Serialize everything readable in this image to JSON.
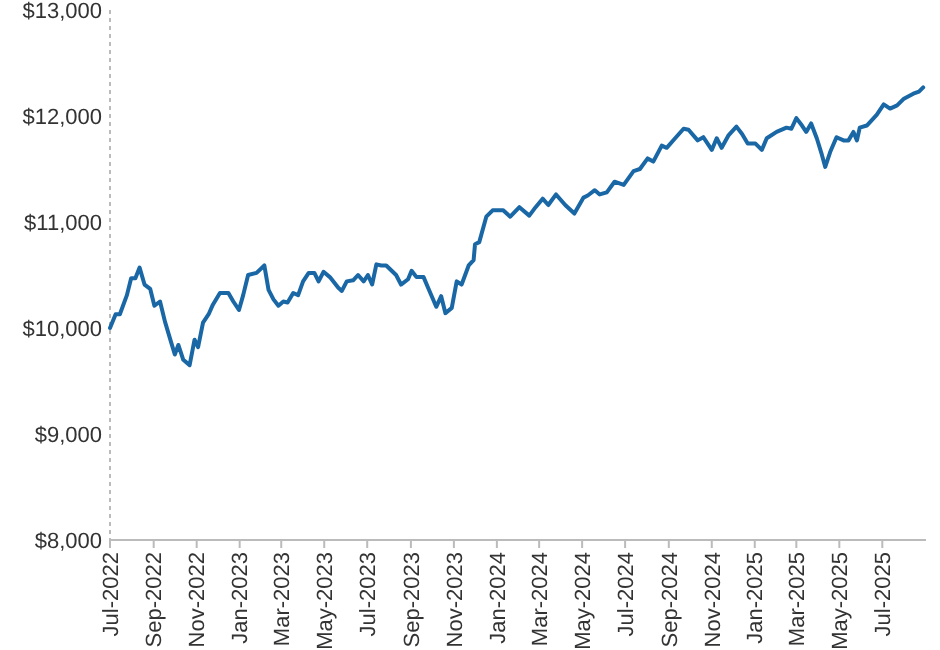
{
  "chart_data": {
    "type": "line",
    "color": "#1a67a6",
    "x": [
      "2022-07-01",
      "2022-07-09",
      "2022-07-15",
      "2022-07-25",
      "2022-07-31",
      "2022-08-06",
      "2022-08-12",
      "2022-08-19",
      "2022-08-27",
      "2022-09-02",
      "2022-09-10",
      "2022-09-17",
      "2022-09-26",
      "2022-10-01",
      "2022-10-06",
      "2022-10-13",
      "2022-10-22",
      "2022-10-29",
      "2022-11-03",
      "2022-11-10",
      "2022-11-18",
      "2022-11-24",
      "2022-12-04",
      "2022-12-16",
      "2022-12-23",
      "2022-12-31",
      "2023-01-06",
      "2023-01-13",
      "2023-01-25",
      "2023-02-05",
      "2023-02-11",
      "2023-02-18",
      "2023-02-25",
      "2023-03-04",
      "2023-03-10",
      "2023-03-18",
      "2023-03-25",
      "2023-04-01",
      "2023-04-09",
      "2023-04-17",
      "2023-04-23",
      "2023-04-30",
      "2023-05-09",
      "2023-05-21",
      "2023-05-26",
      "2023-06-02",
      "2023-06-11",
      "2023-06-18",
      "2023-06-26",
      "2023-07-02",
      "2023-07-08",
      "2023-07-14",
      "2023-07-21",
      "2023-07-28",
      "2023-08-11",
      "2023-08-18",
      "2023-08-28",
      "2023-09-02",
      "2023-09-09",
      "2023-09-19",
      "2023-09-26",
      "2023-10-07",
      "2023-10-14",
      "2023-10-20",
      "2023-10-29",
      "2023-11-05",
      "2023-11-12",
      "2023-11-22",
      "2023-11-29",
      "2023-12-01",
      "2023-12-07",
      "2023-12-17",
      "2023-12-26",
      "2024-01-10",
      "2024-01-20",
      "2024-02-02",
      "2024-02-16",
      "2024-02-25",
      "2024-03-06",
      "2024-03-14",
      "2024-03-25",
      "2024-04-07",
      "2024-04-20",
      "2024-05-03",
      "2024-05-09",
      "2024-05-19",
      "2024-05-26",
      "2024-06-05",
      "2024-06-16",
      "2024-06-29",
      "2024-07-13",
      "2024-07-22",
      "2024-08-02",
      "2024-08-10",
      "2024-08-22",
      "2024-08-29",
      "2024-09-10",
      "2024-09-22",
      "2024-09-29",
      "2024-10-12",
      "2024-10-20",
      "2024-11-01",
      "2024-11-08",
      "2024-11-15",
      "2024-11-25",
      "2024-12-06",
      "2024-12-14",
      "2024-12-22",
      "2025-01-02",
      "2025-01-11",
      "2025-01-18",
      "2025-02-01",
      "2025-02-15",
      "2025-02-22",
      "2025-03-01",
      "2025-03-09",
      "2025-03-15",
      "2025-03-22",
      "2025-03-30",
      "2025-04-06",
      "2025-04-11",
      "2025-04-18",
      "2025-04-27",
      "2025-05-07",
      "2025-05-14",
      "2025-05-21",
      "2025-05-26",
      "2025-05-30",
      "2025-06-09",
      "2025-06-23",
      "2025-07-03",
      "2025-07-12",
      "2025-07-22",
      "2025-07-31",
      "2025-08-14",
      "2025-08-22",
      "2025-08-28"
    ],
    "values": [
      10000,
      10130,
      10130,
      10310,
      10470,
      10470,
      10570,
      10410,
      10370,
      10210,
      10250,
      10060,
      9860,
      9750,
      9840,
      9700,
      9650,
      9890,
      9820,
      10050,
      10130,
      10220,
      10330,
      10330,
      10250,
      10170,
      10310,
      10500,
      10520,
      10590,
      10360,
      10270,
      10210,
      10250,
      10240,
      10330,
      10310,
      10440,
      10520,
      10520,
      10440,
      10530,
      10480,
      10380,
      10350,
      10440,
      10450,
      10500,
      10440,
      10500,
      10410,
      10600,
      10590,
      10590,
      10500,
      10410,
      10460,
      10540,
      10480,
      10480,
      10370,
      10200,
      10300,
      10140,
      10190,
      10440,
      10410,
      10590,
      10640,
      10790,
      10810,
      11050,
      11110,
      11110,
      11050,
      11140,
      11060,
      11140,
      11220,
      11160,
      11260,
      11160,
      11080,
      11230,
      11250,
      11300,
      11260,
      11280,
      11380,
      11350,
      11480,
      11500,
      11600,
      11570,
      11720,
      11700,
      11790,
      11880,
      11870,
      11770,
      11800,
      11680,
      11790,
      11700,
      11820,
      11900,
      11830,
      11740,
      11740,
      11680,
      11790,
      11850,
      11890,
      11880,
      11980,
      11910,
      11850,
      11930,
      11790,
      11640,
      11520,
      11660,
      11800,
      11770,
      11770,
      11850,
      11770,
      11890,
      11910,
      12010,
      12110,
      12070,
      12100,
      12160,
      12210,
      12230,
      12270
    ],
    "xlim": [
      "2022-07-01",
      "2025-09-01"
    ],
    "xticks": [
      {
        "value": "2022-07-01",
        "label": "Jul-2022"
      },
      {
        "value": "2022-09-01",
        "label": "Sep-2022"
      },
      {
        "value": "2022-11-01",
        "label": "Nov-2022"
      },
      {
        "value": "2023-01-01",
        "label": "Jan-2023"
      },
      {
        "value": "2023-03-01",
        "label": "Mar-2023"
      },
      {
        "value": "2023-05-01",
        "label": "May-2023"
      },
      {
        "value": "2023-07-01",
        "label": "Jul-2023"
      },
      {
        "value": "2023-09-01",
        "label": "Sep-2023"
      },
      {
        "value": "2023-11-01",
        "label": "Nov-2023"
      },
      {
        "value": "2024-01-01",
        "label": "Jan-2024"
      },
      {
        "value": "2024-03-01",
        "label": "Mar-2024"
      },
      {
        "value": "2024-05-01",
        "label": "May-2024"
      },
      {
        "value": "2024-07-01",
        "label": "Jul-2024"
      },
      {
        "value": "2024-09-01",
        "label": "Sep-2024"
      },
      {
        "value": "2024-11-01",
        "label": "Nov-2024"
      },
      {
        "value": "2025-01-01",
        "label": "Jan-2025"
      },
      {
        "value": "2025-03-01",
        "label": "Mar-2025"
      },
      {
        "value": "2025-05-01",
        "label": "May-2025"
      },
      {
        "value": "2025-07-01",
        "label": "Jul-2025"
      }
    ],
    "ylim": [
      8000,
      13000
    ],
    "yticks": [
      {
        "value": 8000,
        "label": "$8,000"
      },
      {
        "value": 9000,
        "label": "$9,000"
      },
      {
        "value": 10000,
        "label": "$10,000"
      },
      {
        "value": 11000,
        "label": "$11,000"
      },
      {
        "value": 12000,
        "label": "$12,000"
      },
      {
        "value": 13000,
        "label": "$13,000"
      }
    ],
    "grid": false,
    "marker": "none",
    "line_style": "solid",
    "legend": false
  }
}
